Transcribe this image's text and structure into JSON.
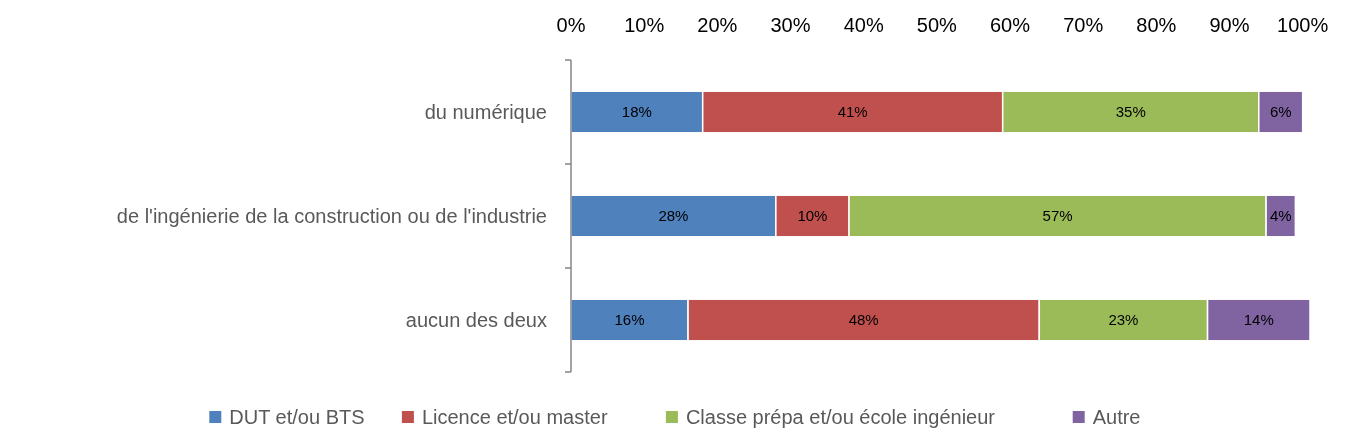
{
  "chart_data": {
    "type": "bar",
    "orientation": "horizontal",
    "stacked": true,
    "categories": [
      "du numérique",
      "de l'ingénierie de la construction ou de l'industrie",
      "aucun des deux"
    ],
    "series": [
      {
        "name": "DUT et/ou BTS",
        "color": "#4f81bd",
        "values": [
          18,
          28,
          16
        ],
        "value_labels": [
          "18%",
          "28%",
          "16%"
        ]
      },
      {
        "name": "Licence et/ou master",
        "color": "#c0504d",
        "values": [
          41,
          10,
          48
        ],
        "value_labels": [
          "41%",
          "10%",
          "48%"
        ]
      },
      {
        "name": "Classe prépa et/ou école ingénieur",
        "color": "#9bbb59",
        "values": [
          35,
          57,
          23
        ],
        "value_labels": [
          "35%",
          "57%",
          "23%"
        ]
      },
      {
        "name": "Autre",
        "color": "#8064a2",
        "values": [
          6,
          4,
          14
        ],
        "value_labels": [
          "6%",
          "4%",
          "14%"
        ]
      }
    ],
    "xlim": [
      0,
      101
    ],
    "xticks": [
      {
        "value": 0,
        "label": "0%"
      },
      {
        "value": 10,
        "label": "10%"
      },
      {
        "value": 20,
        "label": "20%"
      },
      {
        "value": 30,
        "label": "30%"
      },
      {
        "value": 40,
        "label": "40%"
      },
      {
        "value": 50,
        "label": "50%"
      },
      {
        "value": 60,
        "label": "60%"
      },
      {
        "value": 70,
        "label": "70%"
      },
      {
        "value": 80,
        "label": "80%"
      },
      {
        "value": 90,
        "label": "90%"
      },
      {
        "value": 100,
        "label": "100%"
      }
    ],
    "grid": false,
    "legend": "bottom"
  }
}
